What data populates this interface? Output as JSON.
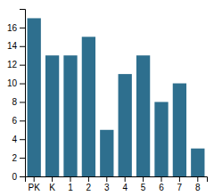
{
  "chart_data": {
    "type": "bar",
    "categories": [
      "PK",
      "K",
      "1",
      "2",
      "3",
      "4",
      "5",
      "6",
      "7",
      "8"
    ],
    "values": [
      17,
      13,
      13,
      15,
      5,
      11,
      13,
      8,
      10,
      3
    ],
    "color": "#2e6f8e",
    "ylim": [
      0,
      18
    ],
    "yticks": [
      0,
      2,
      4,
      6,
      8,
      10,
      12,
      14,
      16
    ],
    "grid": false
  }
}
